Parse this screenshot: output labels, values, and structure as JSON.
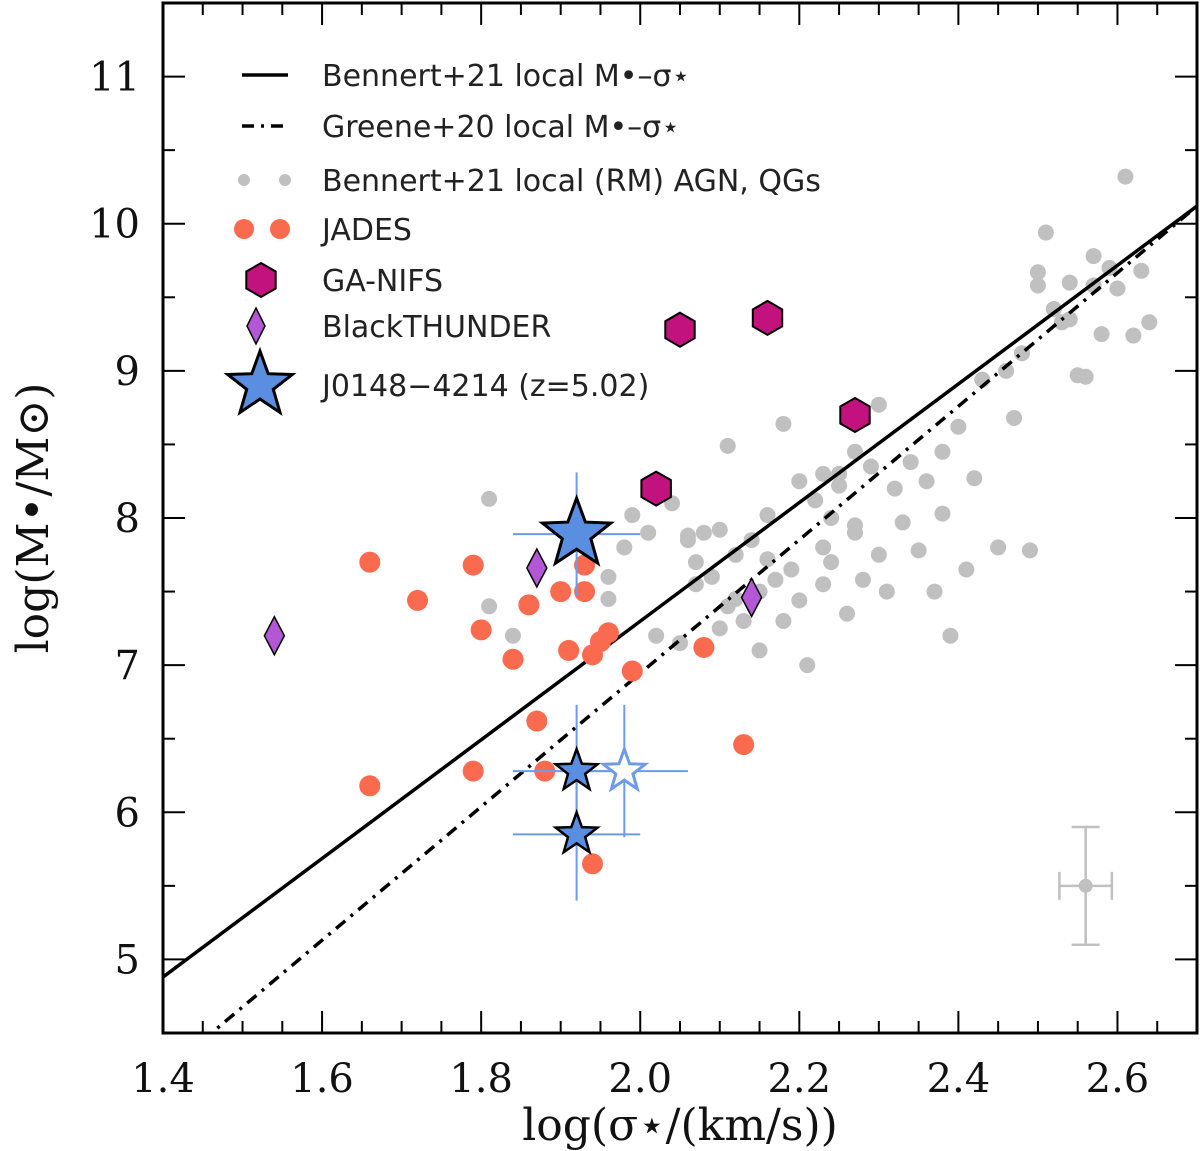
{
  "chart_data": {
    "type": "scatter",
    "xlabel": "log(σ⋆/(km/s))",
    "ylabel": "log(M•/M⊙)",
    "xlim": [
      1.4,
      2.7
    ],
    "ylim": [
      4.5,
      11.5
    ],
    "xticks": [
      "1.4",
      "1.6",
      "1.8",
      "2.0",
      "2.2",
      "2.4",
      "2.6"
    ],
    "xtick_values": [
      1.4,
      1.6,
      1.8,
      2.0,
      2.2,
      2.4,
      2.6
    ],
    "yticks": [
      "5",
      "6",
      "7",
      "8",
      "9",
      "10",
      "11"
    ],
    "ytick_values": [
      5,
      6,
      7,
      8,
      9,
      10,
      11
    ],
    "legend": {
      "placement": "top-left",
      "entries": [
        {
          "id": "bennert_line",
          "label": "Bennert+21 local M•–σ⋆",
          "marker": "solid-line"
        },
        {
          "id": "greene_line",
          "label": "Greene+20 local M•–σ⋆",
          "marker": "dashdot-line"
        },
        {
          "id": "local",
          "label": "Bennert+21 local (RM) AGN, QGs",
          "marker": "gray-circles"
        },
        {
          "id": "jades",
          "label": "JADES",
          "marker": "red-circles"
        },
        {
          "id": "ganifs",
          "label": "GA-NIFS",
          "marker": "magenta-hexagon"
        },
        {
          "id": "blackthunder",
          "label": "BlackTHUNDER",
          "marker": "purple-diamond"
        },
        {
          "id": "j0148",
          "label": "J0148−4214 (z=5.02)",
          "marker": "blue-star"
        }
      ]
    },
    "colors": {
      "local": "#c0c0c0",
      "jades": "#fa6a4e",
      "ganifs": "#c2127e",
      "blackthunder": "#b357d6",
      "j0148": "#5a8ee0",
      "errorbar": "#6d9be8",
      "lines": "#000000"
    },
    "relations": [
      {
        "name": "Bennert+21 local M•–σ⋆",
        "style": "solid",
        "points": [
          [
            1.4,
            4.88
          ],
          [
            2.7,
            10.12
          ]
        ]
      },
      {
        "name": "Greene+20 local M•–σ⋆",
        "style": "dashdot",
        "points": [
          [
            1.45,
            4.45
          ],
          [
            2.7,
            10.12
          ]
        ]
      }
    ],
    "series": [
      {
        "name": "Bennert+21 local (RM) AGN, QGs",
        "points": [
          [
            1.81,
            8.13
          ],
          [
            1.81,
            7.4
          ],
          [
            1.84,
            7.2
          ],
          [
            1.96,
            7.6
          ],
          [
            1.96,
            7.45
          ],
          [
            1.98,
            7.8
          ],
          [
            1.99,
            8.02
          ],
          [
            2.01,
            7.9
          ],
          [
            2.02,
            7.2
          ],
          [
            2.04,
            8.1
          ],
          [
            2.05,
            7.15
          ],
          [
            2.06,
            7.85
          ],
          [
            2.07,
            7.7
          ],
          [
            2.07,
            7.55
          ],
          [
            2.08,
            7.9
          ],
          [
            2.09,
            7.6
          ],
          [
            2.1,
            7.92
          ],
          [
            2.1,
            7.25
          ],
          [
            2.11,
            8.49
          ],
          [
            2.11,
            7.4
          ],
          [
            2.12,
            7.75
          ],
          [
            2.13,
            7.3
          ],
          [
            2.14,
            7.85
          ],
          [
            2.15,
            7.5
          ],
          [
            2.15,
            7.1
          ],
          [
            2.16,
            7.72
          ],
          [
            2.16,
            8.02
          ],
          [
            2.17,
            7.58
          ],
          [
            2.18,
            8.64
          ],
          [
            2.19,
            7.65
          ],
          [
            2.2,
            8.25
          ],
          [
            2.2,
            7.44
          ],
          [
            2.21,
            7.0
          ],
          [
            2.22,
            8.12
          ],
          [
            2.23,
            7.8
          ],
          [
            2.23,
            7.55
          ],
          [
            2.24,
            8.0
          ],
          [
            2.25,
            8.3
          ],
          [
            2.26,
            7.35
          ],
          [
            2.27,
            7.9
          ],
          [
            2.27,
            8.45
          ],
          [
            2.28,
            7.58
          ],
          [
            2.29,
            8.35
          ],
          [
            2.3,
            8.77
          ],
          [
            2.3,
            7.75
          ],
          [
            2.31,
            7.5
          ],
          [
            2.32,
            8.2
          ],
          [
            2.33,
            7.97
          ],
          [
            2.34,
            8.38
          ],
          [
            2.35,
            7.78
          ],
          [
            2.36,
            8.25
          ],
          [
            2.37,
            7.5
          ],
          [
            2.38,
            8.03
          ],
          [
            2.38,
            8.45
          ],
          [
            2.39,
            7.2
          ],
          [
            2.4,
            8.62
          ],
          [
            2.41,
            7.65
          ],
          [
            2.42,
            8.27
          ],
          [
            2.43,
            8.94
          ],
          [
            2.45,
            7.8
          ],
          [
            2.46,
            9.0
          ],
          [
            2.47,
            8.68
          ],
          [
            2.48,
            9.12
          ],
          [
            2.49,
            7.78
          ],
          [
            2.5,
            9.58
          ],
          [
            2.5,
            9.67
          ],
          [
            2.51,
            9.94
          ],
          [
            2.52,
            9.42
          ],
          [
            2.53,
            9.33
          ],
          [
            2.54,
            9.35
          ],
          [
            2.54,
            9.6
          ],
          [
            2.55,
            8.97
          ],
          [
            2.56,
            8.96
          ],
          [
            2.57,
            9.58
          ],
          [
            2.57,
            9.78
          ],
          [
            2.58,
            9.25
          ],
          [
            2.59,
            9.7
          ],
          [
            2.6,
            9.56
          ],
          [
            2.61,
            10.32
          ],
          [
            2.62,
            9.24
          ],
          [
            2.63,
            9.68
          ],
          [
            2.64,
            9.33
          ],
          [
            2.23,
            8.3
          ],
          [
            2.24,
            7.7
          ],
          [
            2.27,
            7.95
          ],
          [
            2.12,
            7.45
          ],
          [
            2.06,
            7.88
          ],
          [
            2.18,
            7.3
          ],
          [
            2.25,
            8.22
          ]
        ]
      },
      {
        "name": "JADES",
        "points": [
          [
            1.66,
            7.7
          ],
          [
            1.66,
            6.18
          ],
          [
            1.72,
            7.44
          ],
          [
            1.79,
            7.68
          ],
          [
            1.79,
            6.28
          ],
          [
            1.8,
            7.24
          ],
          [
            1.84,
            7.04
          ],
          [
            1.86,
            7.41
          ],
          [
            1.87,
            6.62
          ],
          [
            1.88,
            6.28
          ],
          [
            1.9,
            7.5
          ],
          [
            1.91,
            7.1
          ],
          [
            1.93,
            7.68
          ],
          [
            1.93,
            7.5
          ],
          [
            1.94,
            7.07
          ],
          [
            1.94,
            5.65
          ],
          [
            1.95,
            7.16
          ],
          [
            1.96,
            7.22
          ],
          [
            1.99,
            6.96
          ],
          [
            2.08,
            7.12
          ],
          [
            2.13,
            6.46
          ]
        ]
      },
      {
        "name": "GA-NIFS",
        "points": [
          [
            2.02,
            8.2
          ],
          [
            2.05,
            9.28
          ],
          [
            2.16,
            9.36
          ],
          [
            2.27,
            8.7
          ]
        ]
      },
      {
        "name": "BlackTHUNDER",
        "points": [
          [
            1.54,
            7.2
          ],
          [
            1.87,
            7.66
          ],
          [
            2.14,
            7.46
          ]
        ]
      },
      {
        "name": "J0148−4214 (z=5.02)",
        "points": [
          {
            "x": 1.92,
            "y": 7.89,
            "xerr": 0.08,
            "yerr": 0.42,
            "size": "large",
            "filled": true
          },
          {
            "x": 1.92,
            "y": 6.28,
            "xerr": 0.08,
            "yerr": 0.45,
            "size": "small",
            "filled": true
          },
          {
            "x": 1.92,
            "y": 5.85,
            "xerr": 0.08,
            "yerr": 0.45,
            "size": "small",
            "filled": true
          },
          {
            "x": 1.98,
            "y": 6.28,
            "xerr": 0.08,
            "yerr": 0.45,
            "size": "small",
            "filled": false
          }
        ]
      }
    ],
    "typical_error": {
      "x": 2.56,
      "y": 5.5,
      "xerr": 0.033,
      "yerr": 0.4
    }
  }
}
